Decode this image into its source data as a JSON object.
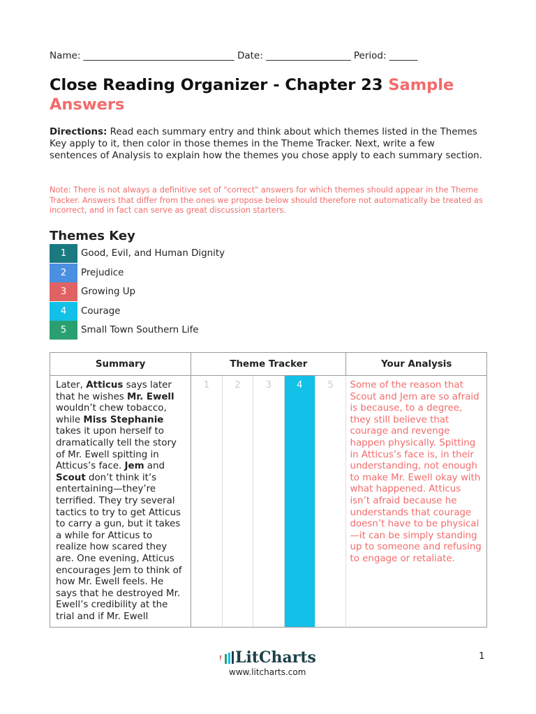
{
  "header": {
    "name_line": "Name: ________________________________ Date: __________________ Period: ______"
  },
  "title": {
    "main": "Close Reading Organizer - Chapter 23",
    "highlight": "Sample Answers"
  },
  "directions": {
    "label": "Directions:",
    "text": " Read each summary entry and think about which themes listed in the Themes Key apply to it, then color in those themes in the Theme Tracker. Next, write a few sentences of Analysis to explain how the themes you chose apply to each summary section."
  },
  "note": "Note: There is not always a definitive set of \"correct\" answers for which themes should appear in the Theme Tracker. Answers that differ from the ones we propose below should therefore not automatically be treated as incorrect, and in fact can serve as great discussion starters.",
  "themes_key": {
    "heading": "Themes Key",
    "items": [
      {
        "num": "1",
        "label": "Good, Evil, and Human Dignity",
        "color": "#1a7a80"
      },
      {
        "num": "2",
        "label": "Prejudice",
        "color": "#4a8fe0"
      },
      {
        "num": "3",
        "label": "Growing Up",
        "color": "#e06262"
      },
      {
        "num": "4",
        "label": "Courage",
        "color": "#12c0e8"
      },
      {
        "num": "5",
        "label": "Small Town Southern Life",
        "color": "#2aa070"
      }
    ]
  },
  "table": {
    "headers": [
      "Summary",
      "Theme Tracker",
      "Your Analysis"
    ],
    "rows": [
      {
        "summary": [
          {
            "t": "Later, "
          },
          {
            "t": "Atticus",
            "b": true
          },
          {
            "t": " says later that he wishes "
          },
          {
            "t": "Mr. Ewell",
            "b": true
          },
          {
            "t": " wouldn’t chew tobacco, while "
          },
          {
            "t": "Miss Stephanie",
            "b": true
          },
          {
            "t": " takes it upon herself to dramatically tell the story of Mr. Ewell spitting in Atticus’s face. "
          },
          {
            "t": "Jem",
            "b": true
          },
          {
            "t": " and "
          },
          {
            "t": "Scout",
            "b": true
          },
          {
            "t": " don’t think it’s entertaining—they’re terrified. They try several tactics to try to get Atticus to carry a gun, but it takes a while for Atticus to realize how scared they are. One evening, Atticus encourages Jem to think of how Mr. Ewell feels. He says that he destroyed Mr. Ewell’s credibility at the trial and if Mr. Ewell"
          }
        ],
        "tracker": [
          "1",
          "2",
          "3",
          "4",
          "5"
        ],
        "active": [
          false,
          false,
          false,
          true,
          false
        ],
        "analysis": "Some of the reason that Scout and Jem are so afraid is because, to a degree, they still believe that courage and revenge happen physically. Spitting in Atticus’s face is, in their understanding, not enough to make Mr. Ewell okay with what happened. Atticus isn’t afraid because he understands that courage doesn’t have to be physical—it can be simply standing up to someone and refusing to engage or retaliate."
      }
    ]
  },
  "footer": {
    "brand": "LitCharts",
    "url": "www.litcharts.com",
    "page": "1"
  }
}
